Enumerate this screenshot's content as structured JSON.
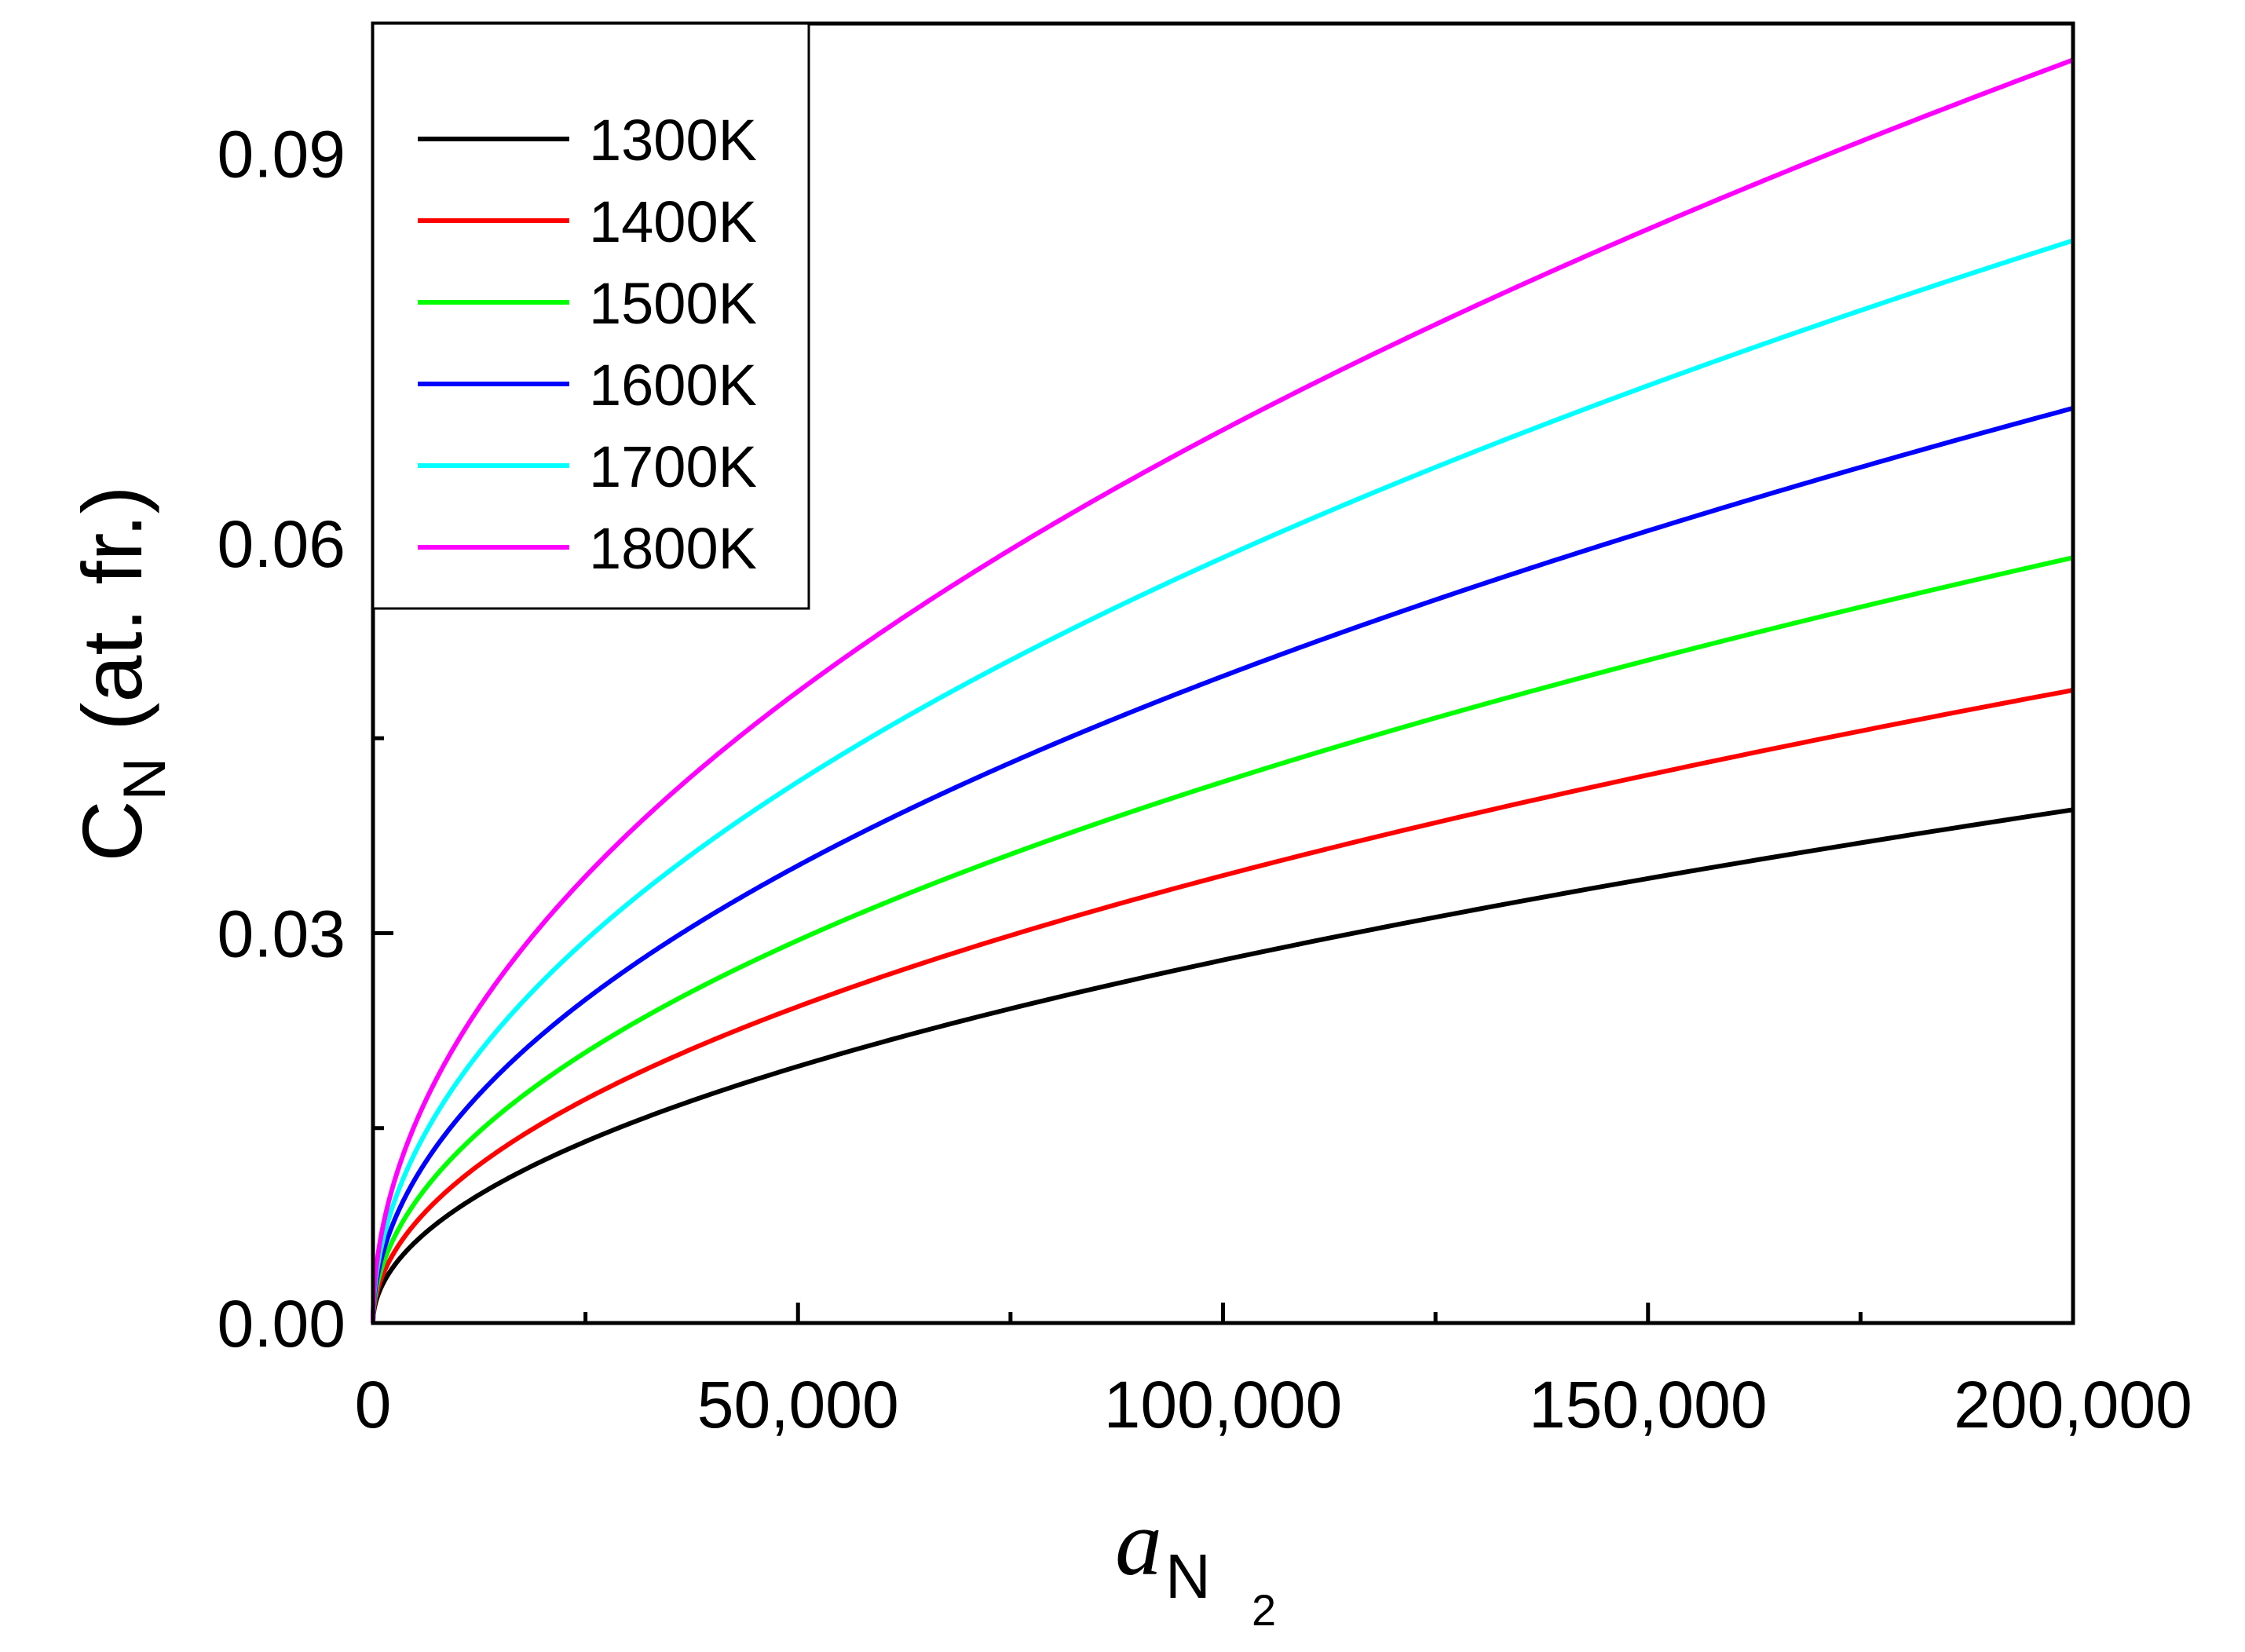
{
  "chart_data": {
    "type": "line",
    "title": "",
    "xlabel": "a",
    "xlabel_sub": "N",
    "xlabel_subsub": "2",
    "ylabel": "C",
    "ylabel_sub": "N",
    "ylabel_unit": "(at. fr.)",
    "xlim": [
      0,
      200000
    ],
    "ylim": [
      0,
      0.1
    ],
    "x_ticks": [
      0,
      50000,
      100000,
      150000,
      200000
    ],
    "x_tick_labels": [
      "0",
      "50,000",
      "100,000",
      "150,000",
      "200,000"
    ],
    "x_minor_ticks": [
      25000,
      75000,
      125000,
      175000
    ],
    "y_ticks": [
      0,
      0.03,
      0.06,
      0.09
    ],
    "y_tick_labels": [
      "0.00",
      "0.03",
      "0.06",
      "0.09"
    ],
    "y_minor_ticks": [
      0.015,
      0.045,
      0.075
    ],
    "grid": false,
    "legend_position": "top-left",
    "curve_form": "C = k * sqrt(a_N2)",
    "x": [
      0,
      12500,
      25000,
      50000,
      75000,
      100000,
      125000,
      150000,
      175000,
      200000
    ],
    "series": [
      {
        "name": "1300K",
        "color": "#000000",
        "values": [
          0,
          0.0099,
          0.014,
          0.0198,
          0.0242,
          0.028,
          0.0313,
          0.0342,
          0.037,
          0.0395
        ]
      },
      {
        "name": "1400K",
        "color": "#ff0000",
        "values": [
          0,
          0.0122,
          0.0172,
          0.0243,
          0.0298,
          0.0344,
          0.0385,
          0.0421,
          0.0455,
          0.0487
        ]
      },
      {
        "name": "1500K",
        "color": "#00ff00",
        "values": [
          0,
          0.0147,
          0.0208,
          0.0295,
          0.0361,
          0.0417,
          0.0466,
          0.051,
          0.0551,
          0.0589
        ]
      },
      {
        "name": "1600K",
        "color": "#0000ff",
        "values": [
          0,
          0.0176,
          0.0249,
          0.0352,
          0.0431,
          0.0498,
          0.0556,
          0.0609,
          0.0658,
          0.0704
        ]
      },
      {
        "name": "1700K",
        "color": "#00ffff",
        "values": [
          0,
          0.0208,
          0.0295,
          0.0417,
          0.051,
          0.0589,
          0.0659,
          0.0722,
          0.0779,
          0.0833
        ]
      },
      {
        "name": "1800K",
        "color": "#ff00ff",
        "values": [
          0,
          0.0243,
          0.0344,
          0.0486,
          0.0595,
          0.0687,
          0.0768,
          0.0842,
          0.0909,
          0.0972
        ]
      }
    ]
  }
}
